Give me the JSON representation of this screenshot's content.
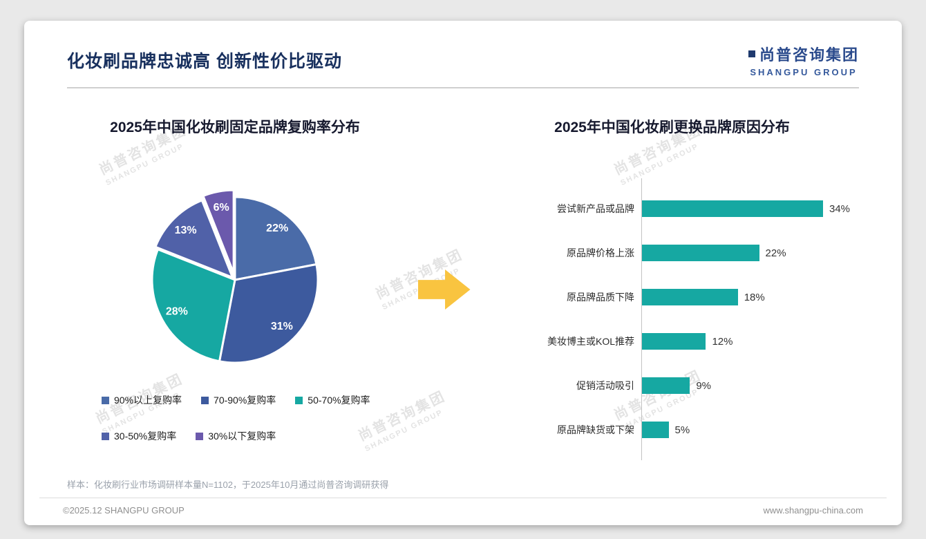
{
  "header": {
    "title": "化妆刷品牌忠诚高 创新性价比驱动",
    "logo_cn": "尚普咨询集团",
    "logo_en": "SHANGPU GROUP"
  },
  "watermark": {
    "line1": "尚普咨询集团",
    "line2": "SHANGPU GROUP"
  },
  "arrow_color": "#F9C440",
  "chart_data": [
    {
      "type": "pie",
      "title": "2025年中国化妆刷固定品牌复购率分布",
      "labels": [
        "90%以上复购率",
        "70-90%复购率",
        "50-70%复购率",
        "30-50%复购率",
        "30%以下复购率"
      ],
      "values": [
        22,
        31,
        28,
        13,
        6
      ],
      "data_labels": [
        "22%",
        "31%",
        "28%",
        "13%",
        "6%"
      ],
      "colors": [
        "#4A6BA8",
        "#3D5A9E",
        "#16A8A2",
        "#5061A8",
        "#6B59AC"
      ],
      "legend_position": "bottom"
    },
    {
      "type": "bar",
      "orientation": "horizontal",
      "title": "2025年中国化妆刷更换品牌原因分布",
      "categories": [
        "尝试新产品或品牌",
        "原品牌价格上涨",
        "原品牌品质下降",
        "美妆博主或KOL推荐",
        "促销活动吸引",
        "原品牌缺货或下架"
      ],
      "values": [
        34,
        22,
        18,
        12,
        9,
        5
      ],
      "value_labels": [
        "34%",
        "22%",
        "18%",
        "12%",
        "9%",
        "5%"
      ],
      "bar_color": "#16A8A2",
      "xlim": [
        0,
        40
      ]
    }
  ],
  "footer": {
    "note": "样本：化妆刷行业市场调研样本量N=1102，于2025年10月通过尚普咨询调研获得",
    "copyright": "©2025.12 SHANGPU GROUP",
    "website": "www.shangpu-china.com"
  }
}
